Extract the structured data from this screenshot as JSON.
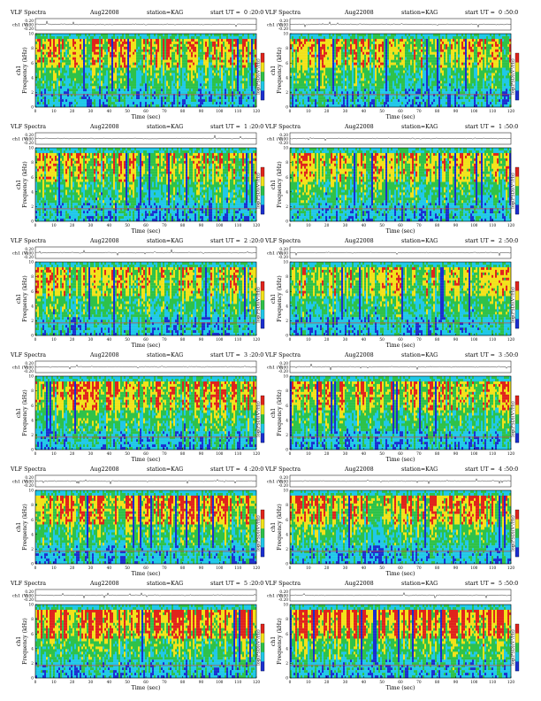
{
  "page": {
    "title_left": "VLF Spectra",
    "date": "Aug22008",
    "station": "station=KAG",
    "start_prefix": "start  UT =",
    "channel_label": "ch1",
    "channel_axis_label": "ch1 (V)",
    "frequency_label": "Frequency  (kHz)",
    "time_label": "Time  (sec)",
    "colorbar_label": "log(PSD)(V²/Hz)"
  },
  "colors": {
    "low": "#1b2fd0",
    "cyan": "#20c8e8",
    "green": "#2ec24a",
    "yellow": "#f2e21a",
    "red": "#e0241c",
    "trace": "#333333"
  },
  "chart_data": [
    {
      "type": "heatmap",
      "start": "0 :20:0",
      "xlabel": "Time  (sec)",
      "ylabel": "Frequency  (kHz)",
      "xlim": [
        0,
        120
      ],
      "ylim": [
        0,
        10
      ],
      "x_ticks": [
        0,
        10,
        20,
        30,
        40,
        50,
        60,
        70,
        80,
        90,
        100,
        110,
        120
      ],
      "y_ticks": [
        0,
        2,
        4,
        6,
        8,
        10
      ],
      "trace_ticks": [
        "0.20",
        "0.00",
        "-0.20"
      ],
      "intensity": 0.55
    },
    {
      "type": "heatmap",
      "start": "0 :50:0",
      "xlabel": "Time  (sec)",
      "ylabel": "Frequency  (kHz)",
      "xlim": [
        0,
        120
      ],
      "ylim": [
        0,
        10
      ],
      "x_ticks": [
        0,
        10,
        20,
        30,
        40,
        50,
        60,
        70,
        80,
        90,
        100,
        110,
        120
      ],
      "y_ticks": [
        0,
        2,
        4,
        6,
        8,
        10
      ],
      "trace_ticks": [
        "0.20",
        "0.00",
        "-0.20"
      ],
      "intensity": 0.5
    },
    {
      "type": "heatmap",
      "start": "1 :20:0",
      "xlabel": "Time  (sec)",
      "ylabel": "Frequency  (kHz)",
      "xlim": [
        0,
        120
      ],
      "ylim": [
        0,
        10
      ],
      "x_ticks": [
        0,
        10,
        20,
        30,
        40,
        50,
        60,
        70,
        80,
        90,
        100,
        110,
        120
      ],
      "y_ticks": [
        0,
        2,
        4,
        6,
        8,
        10
      ],
      "trace_ticks": [
        "0.20",
        "0.00",
        "-0.20"
      ],
      "intensity": 0.5
    },
    {
      "type": "heatmap",
      "start": "1 :50:0",
      "xlabel": "Time  (sec)",
      "ylabel": "Frequency  (kHz)",
      "xlim": [
        0,
        120
      ],
      "ylim": [
        0,
        10
      ],
      "x_ticks": [
        0,
        10,
        20,
        30,
        40,
        50,
        60,
        70,
        80,
        90,
        100,
        110,
        120
      ],
      "y_ticks": [
        0,
        2,
        4,
        6,
        8,
        10
      ],
      "trace_ticks": [
        "0.20",
        "0.00",
        "-0.20"
      ],
      "intensity": 0.5
    },
    {
      "type": "heatmap",
      "start": "2 :20:0",
      "xlabel": "Time  (sec)",
      "ylabel": "Frequency  (kHz)",
      "xlim": [
        0,
        120
      ],
      "ylim": [
        0,
        10
      ],
      "x_ticks": [
        0,
        10,
        20,
        30,
        40,
        50,
        60,
        70,
        80,
        90,
        100,
        110,
        120
      ],
      "y_ticks": [
        0,
        2,
        4,
        6,
        8,
        10
      ],
      "trace_ticks": [
        "0.20",
        "0.00",
        "-0.20"
      ],
      "intensity": 0.45
    },
    {
      "type": "heatmap",
      "start": "2 :50:0",
      "xlabel": "Time  (sec)",
      "ylabel": "Frequency  (kHz)",
      "xlim": [
        0,
        120
      ],
      "ylim": [
        0,
        10
      ],
      "x_ticks": [
        0,
        10,
        20,
        30,
        40,
        50,
        60,
        70,
        80,
        90,
        100,
        110,
        120
      ],
      "y_ticks": [
        0,
        2,
        4,
        6,
        8,
        10
      ],
      "trace_ticks": [
        "0.20",
        "0.00",
        "-0.20"
      ],
      "intensity": 0.45
    },
    {
      "type": "heatmap",
      "start": "3 :20:0",
      "xlabel": "Time  (sec)",
      "ylabel": "Frequency  (kHz)",
      "xlim": [
        0,
        120
      ],
      "ylim": [
        0,
        10
      ],
      "x_ticks": [
        0,
        10,
        20,
        30,
        40,
        50,
        60,
        70,
        80,
        90,
        100,
        110,
        120
      ],
      "y_ticks": [
        0,
        2,
        4,
        6,
        8,
        10
      ],
      "trace_ticks": [
        "0.20",
        "0.00",
        "-0.20"
      ],
      "intensity": 0.55
    },
    {
      "type": "heatmap",
      "start": "3 :50:0",
      "xlabel": "Time  (sec)",
      "ylabel": "Frequency  (kHz)",
      "xlim": [
        0,
        120
      ],
      "ylim": [
        0,
        10
      ],
      "x_ticks": [
        0,
        10,
        20,
        30,
        40,
        50,
        60,
        70,
        80,
        90,
        100,
        110,
        120
      ],
      "y_ticks": [
        0,
        2,
        4,
        6,
        8,
        10
      ],
      "trace_ticks": [
        "0.20",
        "0.00",
        "-0.20"
      ],
      "intensity": 0.55
    },
    {
      "type": "heatmap",
      "start": "4 :20:0",
      "xlabel": "Time  (sec)",
      "ylabel": "Frequency  (kHz)",
      "xlim": [
        0,
        120
      ],
      "ylim": [
        0,
        10
      ],
      "x_ticks": [
        0,
        10,
        20,
        30,
        40,
        50,
        60,
        70,
        80,
        90,
        100,
        110,
        120
      ],
      "y_ticks": [
        0,
        2,
        4,
        6,
        8,
        10
      ],
      "trace_ticks": [
        "0.20",
        "0.00",
        "-0.20"
      ],
      "intensity": 0.6
    },
    {
      "type": "heatmap",
      "start": "4 :50:0",
      "xlabel": "Time  (sec)",
      "ylabel": "Frequency  (kHz)",
      "xlim": [
        0,
        120
      ],
      "ylim": [
        0,
        10
      ],
      "x_ticks": [
        0,
        10,
        20,
        30,
        40,
        50,
        60,
        70,
        80,
        90,
        100,
        110,
        120
      ],
      "y_ticks": [
        0,
        2,
        4,
        6,
        8,
        10
      ],
      "trace_ticks": [
        "0.20",
        "0.00",
        "-0.20"
      ],
      "intensity": 0.6
    },
    {
      "type": "heatmap",
      "start": "5 :20:0",
      "xlabel": "Time  (sec)",
      "ylabel": "Frequency  (kHz)",
      "xlim": [
        0,
        120
      ],
      "ylim": [
        0,
        10
      ],
      "x_ticks": [
        0,
        10,
        20,
        30,
        40,
        50,
        60,
        70,
        80,
        90,
        100,
        110,
        120
      ],
      "y_ticks": [
        0,
        2,
        4,
        6,
        8,
        10
      ],
      "trace_ticks": [
        "0.20",
        "0.00",
        "-0.20"
      ],
      "intensity": 0.7
    },
    {
      "type": "heatmap",
      "start": "5 :50:0",
      "xlabel": "Time  (sec)",
      "ylabel": "Frequency  (kHz)",
      "xlim": [
        0,
        120
      ],
      "ylim": [
        0,
        10
      ],
      "x_ticks": [
        0,
        10,
        20,
        30,
        40,
        50,
        60,
        70,
        80,
        90,
        100,
        110,
        120
      ],
      "y_ticks": [
        0,
        2,
        4,
        6,
        8,
        10
      ],
      "trace_ticks": [
        "0.20",
        "0.00",
        "-0.20"
      ],
      "intensity": 0.75
    }
  ]
}
